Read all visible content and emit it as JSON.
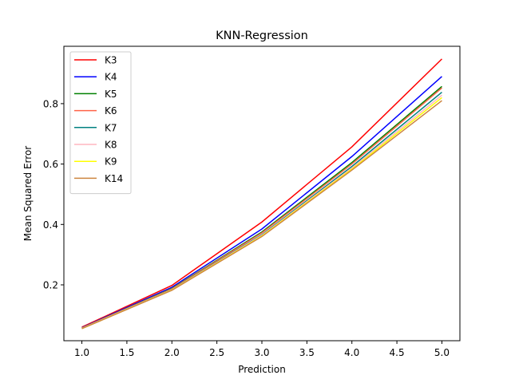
{
  "chart_data": {
    "type": "line",
    "title": "KNN-Regression",
    "xlabel": "Prediction",
    "ylabel": "Mean Squared Error",
    "xlim": [
      0.8,
      5.2
    ],
    "ylim": [
      0.015,
      0.99
    ],
    "xticks": [
      1.0,
      1.5,
      2.0,
      2.5,
      3.0,
      3.5,
      4.0,
      4.5,
      5.0
    ],
    "xtick_labels": [
      "1.0",
      "1.5",
      "2.0",
      "2.5",
      "3.0",
      "3.5",
      "4.0",
      "4.5",
      "5.0"
    ],
    "yticks": [
      0.2,
      0.4,
      0.6,
      0.8
    ],
    "ytick_labels": [
      "0.2",
      "0.4",
      "0.6",
      "0.8"
    ],
    "grid": false,
    "legend_position": "upper-left",
    "x": [
      1,
      2,
      3,
      4,
      5
    ],
    "series": [
      {
        "name": "K3",
        "color": "#ff0000",
        "values": [
          0.06,
          0.198,
          0.408,
          0.657,
          0.948
        ]
      },
      {
        "name": "K4",
        "color": "#0000ff",
        "values": [
          0.058,
          0.192,
          0.385,
          0.625,
          0.89
        ]
      },
      {
        "name": "K5",
        "color": "#008000",
        "values": [
          0.057,
          0.188,
          0.375,
          0.605,
          0.857
        ]
      },
      {
        "name": "K6",
        "color": "#ff6347",
        "values": [
          0.057,
          0.187,
          0.372,
          0.6,
          0.852
        ]
      },
      {
        "name": "K7",
        "color": "#008080",
        "values": [
          0.056,
          0.185,
          0.366,
          0.592,
          0.838
        ]
      },
      {
        "name": "K8",
        "color": "#ffb6c1",
        "values": [
          0.056,
          0.184,
          0.364,
          0.587,
          0.828
        ]
      },
      {
        "name": "K9",
        "color": "#ffff00",
        "values": [
          0.055,
          0.183,
          0.362,
          0.583,
          0.82
        ]
      },
      {
        "name": "K14",
        "color": "#cd853f",
        "values": [
          0.055,
          0.182,
          0.36,
          0.58,
          0.81
        ]
      }
    ]
  }
}
